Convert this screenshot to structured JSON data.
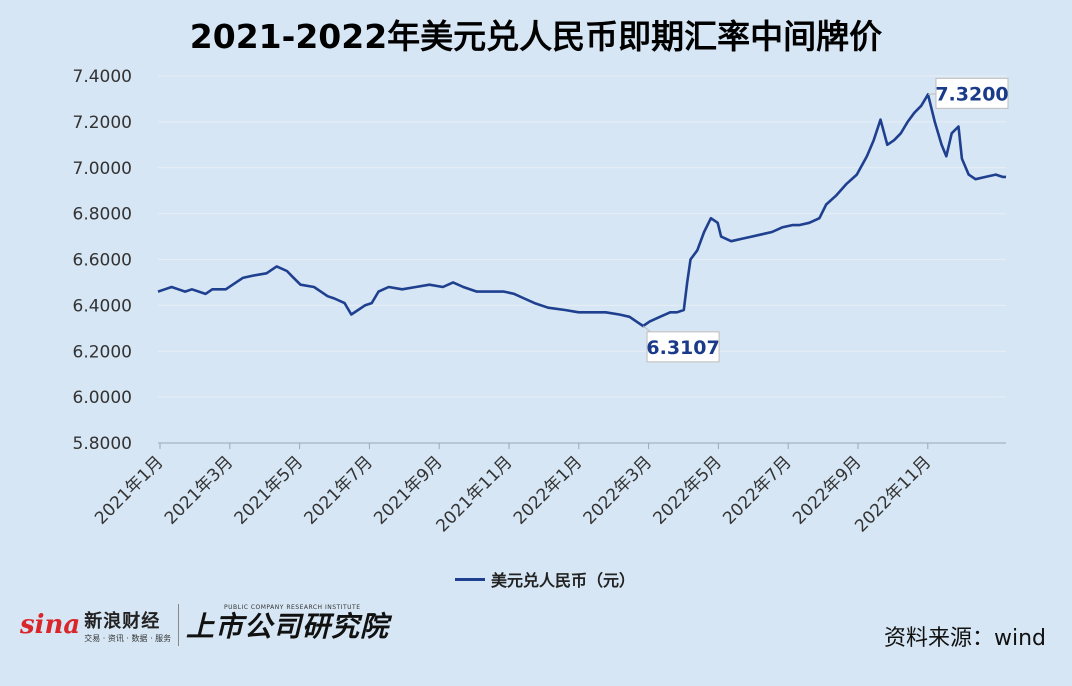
{
  "chart_data": {
    "type": "line",
    "title": "2021-2022年美元兑人民币即期汇率中间牌价",
    "ylim": [
      5.8,
      7.4
    ],
    "yticks": [
      "7.4000",
      "7.2000",
      "7.0000",
      "6.8000",
      "6.6000",
      "6.4000",
      "6.2000",
      "6.0000",
      "5.8000"
    ],
    "xticks": [
      "2021年1月",
      "2021年3月",
      "2021年5月",
      "2021年7月",
      "2021年9月",
      "2021年11月",
      "2022年1月",
      "2022年3月",
      "2022年5月",
      "2022年7月",
      "2022年9月",
      "2022年11月"
    ],
    "grid": true,
    "legend_position": "bottom",
    "series": [
      {
        "name": "美元兑人民币（元）",
        "color": "#1f3f8f",
        "points": [
          [
            0.0,
            6.46
          ],
          [
            0.1,
            6.47
          ],
          [
            0.2,
            6.48
          ],
          [
            0.3,
            6.47
          ],
          [
            0.4,
            6.46
          ],
          [
            0.5,
            6.47
          ],
          [
            0.7,
            6.45
          ],
          [
            0.8,
            6.47
          ],
          [
            1.0,
            6.47
          ],
          [
            1.15,
            6.5
          ],
          [
            1.25,
            6.52
          ],
          [
            1.4,
            6.53
          ],
          [
            1.6,
            6.54
          ],
          [
            1.75,
            6.57
          ],
          [
            1.9,
            6.55
          ],
          [
            2.0,
            6.52
          ],
          [
            2.1,
            6.49
          ],
          [
            2.3,
            6.48
          ],
          [
            2.4,
            6.46
          ],
          [
            2.5,
            6.44
          ],
          [
            2.6,
            6.43
          ],
          [
            2.75,
            6.41
          ],
          [
            2.85,
            6.36
          ],
          [
            2.95,
            6.38
          ],
          [
            3.05,
            6.4
          ],
          [
            3.15,
            6.41
          ],
          [
            3.25,
            6.46
          ],
          [
            3.4,
            6.48
          ],
          [
            3.6,
            6.47
          ],
          [
            3.8,
            6.48
          ],
          [
            4.0,
            6.49
          ],
          [
            4.2,
            6.48
          ],
          [
            4.35,
            6.5
          ],
          [
            4.5,
            6.48
          ],
          [
            4.7,
            6.46
          ],
          [
            4.9,
            6.46
          ],
          [
            5.1,
            6.46
          ],
          [
            5.25,
            6.45
          ],
          [
            5.4,
            6.43
          ],
          [
            5.55,
            6.41
          ],
          [
            5.75,
            6.39
          ],
          [
            6.0,
            6.38
          ],
          [
            6.2,
            6.37
          ],
          [
            6.4,
            6.37
          ],
          [
            6.6,
            6.37
          ],
          [
            6.8,
            6.36
          ],
          [
            6.95,
            6.35
          ],
          [
            7.05,
            6.33
          ],
          [
            7.15,
            6.31
          ],
          [
            7.25,
            6.33
          ],
          [
            7.4,
            6.35
          ],
          [
            7.55,
            6.37
          ],
          [
            7.65,
            6.37
          ],
          [
            7.75,
            6.38
          ],
          [
            7.8,
            6.5
          ],
          [
            7.85,
            6.6
          ],
          [
            7.95,
            6.64
          ],
          [
            8.05,
            6.72
          ],
          [
            8.15,
            6.78
          ],
          [
            8.25,
            6.76
          ],
          [
            8.3,
            6.7
          ],
          [
            8.45,
            6.68
          ],
          [
            8.6,
            6.69
          ],
          [
            8.75,
            6.7
          ],
          [
            8.9,
            6.71
          ],
          [
            9.05,
            6.72
          ],
          [
            9.2,
            6.74
          ],
          [
            9.35,
            6.75
          ],
          [
            9.45,
            6.75
          ],
          [
            9.6,
            6.76
          ],
          [
            9.75,
            6.78
          ],
          [
            9.85,
            6.84
          ],
          [
            10.0,
            6.88
          ],
          [
            10.15,
            6.93
          ],
          [
            10.3,
            6.97
          ],
          [
            10.45,
            7.05
          ],
          [
            10.55,
            7.12
          ],
          [
            10.65,
            7.21
          ],
          [
            10.75,
            7.1
          ],
          [
            10.85,
            7.12
          ],
          [
            10.95,
            7.15
          ],
          [
            11.05,
            7.2
          ],
          [
            11.15,
            7.24
          ],
          [
            11.25,
            7.27
          ],
          [
            11.35,
            7.32
          ],
          [
            11.45,
            7.2
          ],
          [
            11.55,
            7.1
          ],
          [
            11.62,
            7.05
          ],
          [
            11.7,
            7.15
          ],
          [
            11.8,
            7.18
          ],
          [
            11.85,
            7.04
          ],
          [
            11.95,
            6.97
          ],
          [
            12.05,
            6.95
          ],
          [
            12.2,
            6.96
          ],
          [
            12.35,
            6.97
          ],
          [
            12.45,
            6.96
          ],
          [
            12.5,
            6.96
          ]
        ]
      }
    ],
    "annotations": [
      {
        "label": "6.3107",
        "x": 7.15,
        "y": 6.3107
      },
      {
        "label": "7.3200",
        "x": 11.35,
        "y": 7.32
      }
    ]
  },
  "branding": {
    "sina_logo": "sina",
    "sina_name": "新浪财经",
    "sina_sub": "交易 · 资讯 · 数据 · 服务",
    "inst_en": "PUBLIC COMPANY RESEARCH INSTITUTE",
    "inst_cn": "上市公司研究院"
  },
  "source": "资料来源：wind"
}
